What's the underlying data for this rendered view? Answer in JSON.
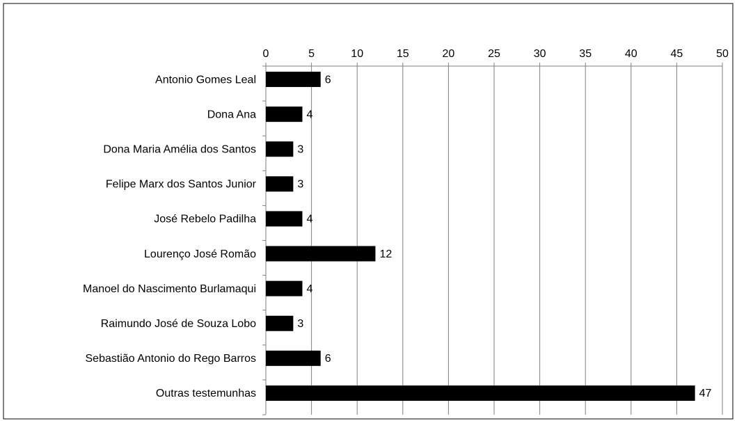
{
  "chart_data": {
    "type": "bar",
    "orientation": "horizontal",
    "categories": [
      "Antonio Gomes Leal",
      "Dona Ana",
      "Dona Maria Amélia dos Santos",
      "Felipe Marx dos Santos Junior",
      "José Rebelo Padilha",
      "Lourenço José Romão",
      "Manoel do Nascimento Burlamaqui",
      "Raimundo José de Souza Lobo",
      "Sebastião Antonio do Rego Barros",
      "Outras testemunhas"
    ],
    "values": [
      6,
      4,
      3,
      3,
      4,
      12,
      4,
      3,
      6,
      47
    ],
    "color": "#000000",
    "xlim": [
      0,
      50
    ],
    "xticks": [
      0,
      5,
      10,
      15,
      20,
      25,
      30,
      35,
      40,
      45,
      50
    ],
    "grid": true
  }
}
